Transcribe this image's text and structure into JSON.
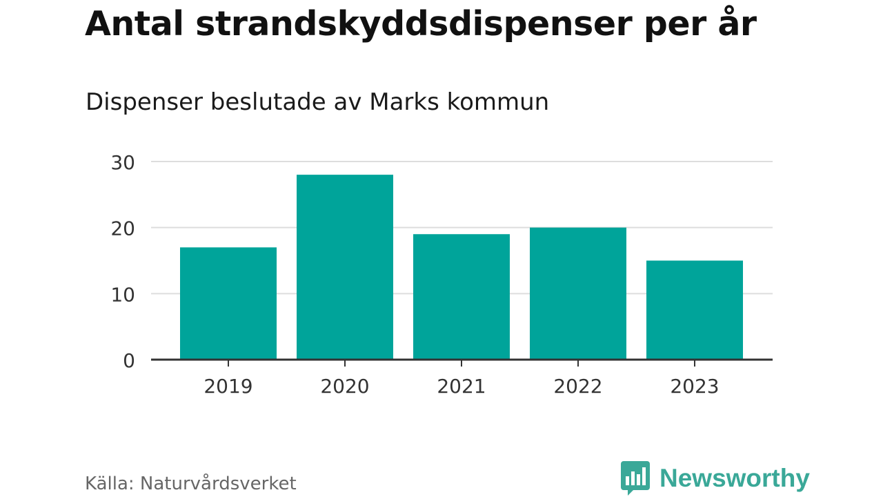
{
  "header": {
    "title": "Antal strandskyddsdispenser per år",
    "subtitle": "Dispenser beslutade av Marks kommun"
  },
  "footer": {
    "source": "Källa: Naturvårdsverket",
    "brand": "Newsworthy"
  },
  "colors": {
    "bar": "#00a49a",
    "brand": "#3aa898",
    "grid": "#dddddd",
    "axis": "#333333",
    "tick_text": "#333333"
  },
  "icons": {
    "brand_logo": "newsworthy-logo-icon"
  },
  "chart_data": {
    "type": "bar",
    "title": "Antal strandskyddsdispenser per år",
    "subtitle": "Dispenser beslutade av Marks kommun",
    "categories": [
      "2019",
      "2020",
      "2021",
      "2022",
      "2023"
    ],
    "values": [
      17,
      28,
      19,
      20,
      15
    ],
    "yticks": [
      0,
      10,
      20,
      30
    ],
    "ylim": [
      0,
      30
    ],
    "xlabel": "",
    "ylabel": "",
    "grid": true
  }
}
